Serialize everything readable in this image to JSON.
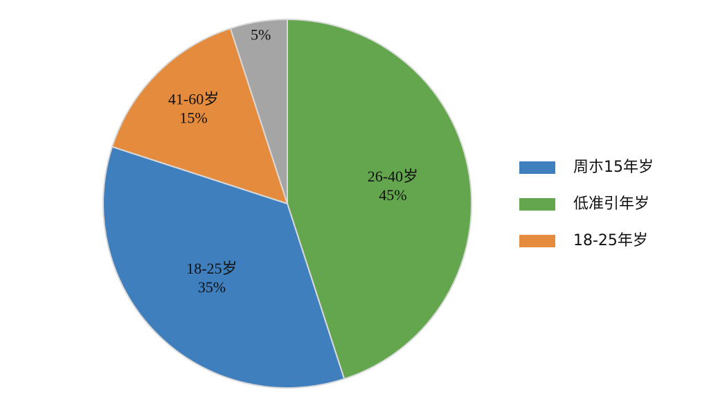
{
  "chart_data": {
    "type": "pie",
    "categories": [
      "26-40岁",
      "18-25岁",
      "41-60岁",
      null
    ],
    "values": [
      45,
      35,
      15,
      5
    ],
    "value_labels": [
      "45%",
      "35%",
      "15%",
      "5%"
    ],
    "colors": [
      "#63a64d",
      "#3f7fbd",
      "#e48b3d",
      "#a5a5a5"
    ],
    "legend": [
      {
        "name": "周朩15年岁",
        "color": "#3f7fbd"
      },
      {
        "name": "低准引年岁",
        "color": "#63a64d"
      },
      {
        "name": "18-25年岁",
        "color": "#e48b3d"
      }
    ],
    "legend_position": "right"
  }
}
